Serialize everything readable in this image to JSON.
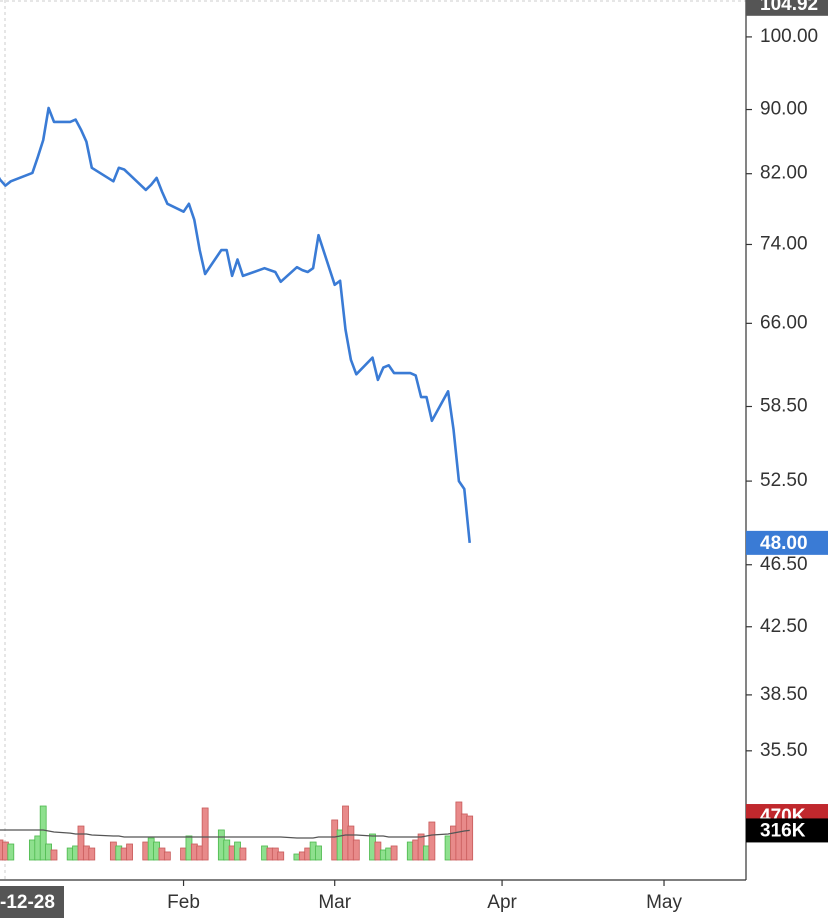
{
  "chart_data": {
    "type": "line",
    "log_scale": true,
    "color": "#3a7bd5",
    "x": [
      "12-28",
      "12-29",
      "12-30",
      "12-31",
      "01-04",
      "01-05",
      "01-06",
      "01-07",
      "01-08",
      "01-11",
      "01-12",
      "01-13",
      "01-14",
      "01-15",
      "01-19",
      "01-20",
      "01-21",
      "01-22",
      "01-25",
      "01-26",
      "01-27",
      "01-28",
      "01-29",
      "02-01",
      "02-02",
      "02-03",
      "02-04",
      "02-05",
      "02-08",
      "02-09",
      "02-10",
      "02-11",
      "02-12",
      "02-16",
      "02-17",
      "02-18",
      "02-19",
      "02-22",
      "02-23",
      "02-24",
      "02-25",
      "02-26",
      "03-01",
      "03-02",
      "03-03",
      "03-04",
      "03-05",
      "03-08",
      "03-09",
      "03-10",
      "03-11",
      "03-12",
      "03-15",
      "03-16",
      "03-17",
      "03-18",
      "03-19",
      "03-22",
      "03-23",
      "03-24",
      "03-25",
      "03-26"
    ],
    "values": [
      82.5,
      81.3,
      80.6,
      81.1,
      82.1,
      84.0,
      86.1,
      90.2,
      88.4,
      88.4,
      88.7,
      87.4,
      85.9,
      82.7,
      81.1,
      82.7,
      82.5,
      81.9,
      80.1,
      80.7,
      81.5,
      79.9,
      78.5,
      77.6,
      78.5,
      76.7,
      73.4,
      70.9,
      73.4,
      73.4,
      70.7,
      72.4,
      70.7,
      71.5,
      71.3,
      71.1,
      70.1,
      71.6,
      71.3,
      71.1,
      71.5,
      75.0,
      69.8,
      70.2,
      65.4,
      62.6,
      61.3,
      62.8,
      60.8,
      61.9,
      62.1,
      61.4,
      61.4,
      61.2,
      59.3,
      59.3,
      57.3,
      59.8,
      56.6,
      52.5,
      51.9,
      48.0
    ],
    "xlim": [
      "12-29",
      "05-16"
    ],
    "xticks": [
      {
        "value": "12-28",
        "label": "-12-28"
      },
      {
        "value": "02-01",
        "label": "Feb"
      },
      {
        "value": "03-01",
        "label": "Mar"
      },
      {
        "value": "04-01",
        "label": "Apr"
      },
      {
        "value": "05-01",
        "label": "May"
      }
    ],
    "ylim": [
      30.3,
      105.5
    ],
    "yticks": [
      {
        "value": 100,
        "label": "100.00"
      },
      {
        "value": 90,
        "label": "90.00"
      },
      {
        "value": 82,
        "label": "82.00"
      },
      {
        "value": 74,
        "label": "74.00"
      },
      {
        "value": 66,
        "label": "66.00"
      },
      {
        "value": 58.5,
        "label": "58.50"
      },
      {
        "value": 52.5,
        "label": "52.50"
      },
      {
        "value": 46.5,
        "label": "46.50"
      },
      {
        "value": 42.5,
        "label": "42.50"
      },
      {
        "value": 38.5,
        "label": "38.50"
      },
      {
        "value": 35.5,
        "label": "35.50"
      }
    ],
    "price_badges": [
      {
        "value": 104.92,
        "label": "104.92",
        "color": "#555555"
      },
      {
        "value": 48,
        "label": "48.00",
        "color": "#3a7bd5"
      }
    ],
    "volume": {
      "values": [
        235,
        214,
        192,
        171,
        214,
        257,
        577,
        171,
        107,
        128,
        150,
        363,
        150,
        128,
        192,
        150,
        128,
        171,
        192,
        235,
        192,
        128,
        86,
        128,
        257,
        171,
        150,
        556,
        321,
        214,
        150,
        192,
        128,
        150,
        128,
        128,
        86,
        64,
        86,
        128,
        192,
        150,
        428,
        321,
        577,
        363,
        214,
        278,
        192,
        107,
        128,
        150,
        192,
        214,
        278,
        150,
        406,
        257,
        363,
        620,
        492,
        470
      ],
      "ma": [
        321,
        321,
        321,
        321,
        321,
        321,
        321,
        310,
        299,
        288,
        278,
        278,
        278,
        267,
        257,
        257,
        246,
        246,
        246,
        246,
        246,
        246,
        246,
        246,
        246,
        246,
        246,
        246,
        246,
        246,
        246,
        246,
        246,
        246,
        246,
        246,
        246,
        235,
        235,
        235,
        235,
        246,
        246,
        257,
        267,
        267,
        267,
        257,
        257,
        257,
        246,
        246,
        246,
        246,
        246,
        257,
        267,
        278,
        289,
        299,
        310,
        316
      ],
      "ylim": [
        0,
        855
      ],
      "up_color": "#8ee08e",
      "down_color": "#e88a8a",
      "ma_color": "#555555",
      "badges": [
        {
          "value": 470,
          "label": "470K",
          "color": "#c0282d"
        },
        {
          "value": 316,
          "label": "316K",
          "color": "#000000"
        }
      ]
    }
  }
}
